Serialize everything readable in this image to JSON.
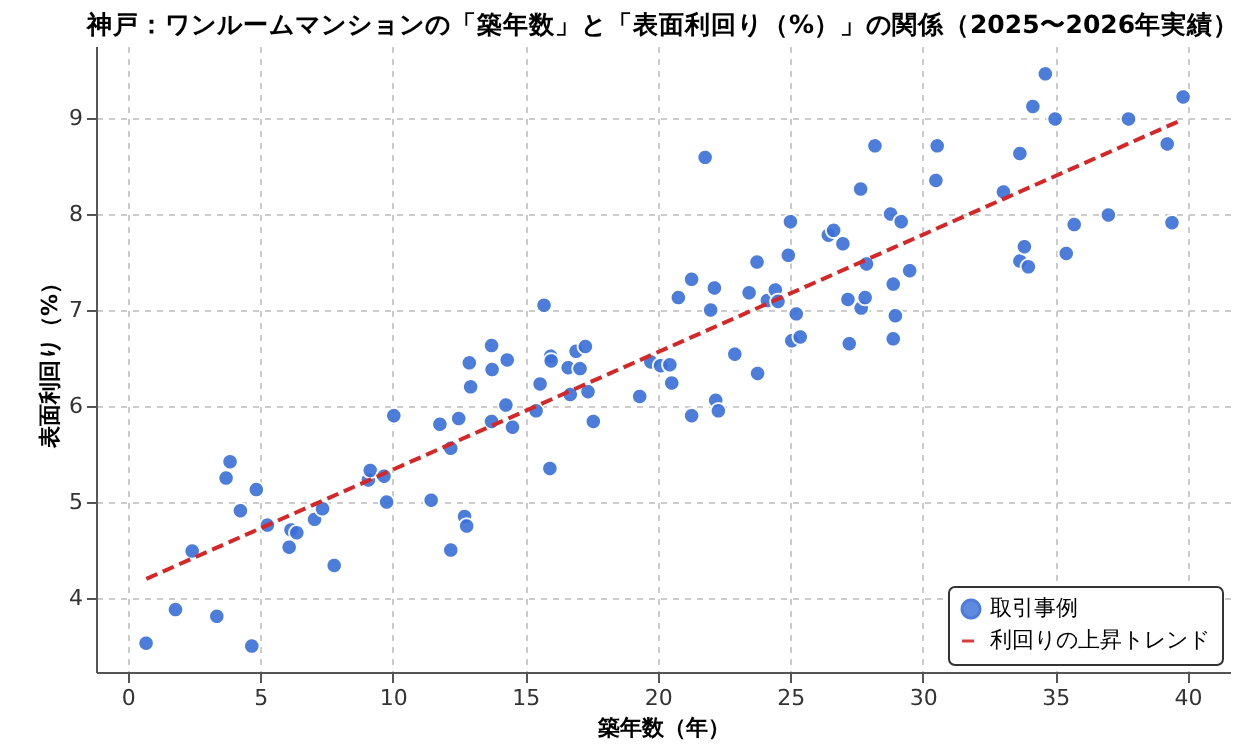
{
  "chart_data": {
    "type": "scatter",
    "title": "神戸：ワンルームマンションの「築年数」と「表面利回り（%）」の関係（2025〜2026年実績）",
    "xlabel": "築年数（年）",
    "ylabel": "表面利回り（%）",
    "xlim": [
      -1.2,
      41.6
    ],
    "ylim": [
      3.23,
      9.75
    ],
    "xticks": [
      0,
      5,
      10,
      15,
      20,
      25,
      30,
      35,
      40
    ],
    "yticks": [
      4,
      5,
      6,
      7,
      8,
      9
    ],
    "grid": true,
    "legend": "bottom right",
    "series": [
      {
        "name": "取引事例",
        "marker": "circle",
        "color": "#3a6fd8",
        "x": [
          0.69,
          1.8,
          2.43,
          3.36,
          3.71,
          3.86,
          4.25,
          4.68,
          4.85,
          5.27,
          6.09,
          6.16,
          6.38,
          7.05,
          7.35,
          7.79,
          9.08,
          9.15,
          9.67,
          9.77,
          10.04,
          11.45,
          11.78,
          12.19,
          12.19,
          12.49,
          12.71,
          12.79,
          12.89,
          12.94,
          13.73,
          13.75,
          13.73,
          14.27,
          14.32,
          14.52,
          15.41,
          15.56,
          15.71,
          15.93,
          15.96,
          15.98,
          16.62,
          16.7,
          16.92,
          17.07,
          17.27,
          17.37,
          17.57,
          19.32,
          19.74,
          20.11,
          20.46,
          20.53,
          20.78,
          21.28,
          21.28,
          21.79,
          22.0,
          22.14,
          22.19,
          22.29,
          22.91,
          23.45,
          23.75,
          23.77,
          24.14,
          24.44,
          24.54,
          24.93,
          25.01,
          25.23,
          25.06,
          25.38,
          26.44,
          26.64,
          26.99,
          27.18,
          27.23,
          27.66,
          27.68,
          27.83,
          27.88,
          28.2,
          28.79,
          28.89,
          28.89,
          28.97,
          29.19,
          29.51,
          30.5,
          30.55,
          33.05,
          33.67,
          33.67,
          33.84,
          33.99,
          34.16,
          34.63,
          35.0,
          35.42,
          35.72,
          37.01,
          37.77,
          39.23,
          39.41,
          39.83
        ],
        "values": [
          3.53,
          3.88,
          4.49,
          3.81,
          5.25,
          5.42,
          4.91,
          3.5,
          5.13,
          4.76,
          4.53,
          4.71,
          4.68,
          4.82,
          4.93,
          4.34,
          5.23,
          5.33,
          5.27,
          5.0,
          5.9,
          5.02,
          5.81,
          4.5,
          5.56,
          5.87,
          4.85,
          4.75,
          6.45,
          6.2,
          6.63,
          6.38,
          5.84,
          6.01,
          6.48,
          5.78,
          5.95,
          6.23,
          7.05,
          5.35,
          6.52,
          6.47,
          6.4,
          6.12,
          6.57,
          6.39,
          6.62,
          6.15,
          5.84,
          6.1,
          6.46,
          6.42,
          6.43,
          6.24,
          7.13,
          5.9,
          7.32,
          8.59,
          7.0,
          7.23,
          6.06,
          5.95,
          6.54,
          7.18,
          7.5,
          6.34,
          7.1,
          7.21,
          7.09,
          7.57,
          7.92,
          6.96,
          6.68,
          6.72,
          7.78,
          7.83,
          7.69,
          7.11,
          6.65,
          8.26,
          7.02,
          7.13,
          7.48,
          8.71,
          8.0,
          7.27,
          6.7,
          6.94,
          7.92,
          7.41,
          8.35,
          8.71,
          8.23,
          8.63,
          7.51,
          7.66,
          7.45,
          9.12,
          9.46,
          8.99,
          7.59,
          7.89,
          7.99,
          8.99,
          8.73,
          7.91,
          9.22
        ]
      },
      {
        "name": "利回りの上昇トレンド",
        "type": "line",
        "color": "#d62728",
        "line_style": "dashed",
        "x": [
          0.7,
          39.7
        ],
        "values": [
          4.2,
          8.97
        ]
      }
    ]
  }
}
